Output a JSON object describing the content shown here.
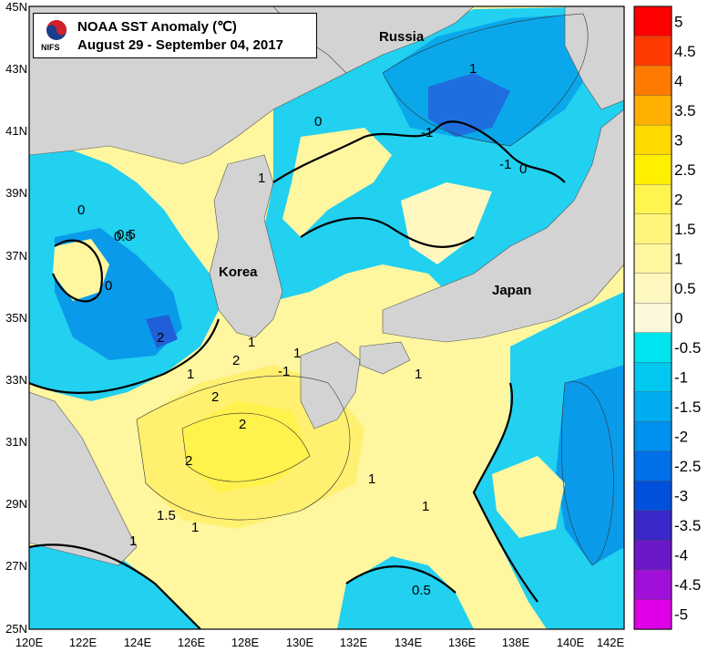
{
  "title": {
    "line1": "NOAA SST Anomaly (℃)",
    "line2": "August 29 - September 04, 2017",
    "logo_text": "NIFS"
  },
  "map": {
    "x_ticks": [
      "120E",
      "122E",
      "124E",
      "126E",
      "128E",
      "130E",
      "132E",
      "134E",
      "136E",
      "138E",
      "140E",
      "142E"
    ],
    "y_ticks": [
      "45N",
      "43N",
      "41N",
      "39N",
      "37N",
      "35N",
      "33N",
      "31N",
      "29N",
      "27N",
      "25N"
    ],
    "place_labels": [
      "Russia",
      "Korea",
      "Japan"
    ],
    "contour_labels": [
      "1",
      "-1",
      "0",
      "0",
      "-1",
      "1",
      "0",
      "0.5",
      "0",
      "2",
      "2",
      "1",
      "-1",
      "2",
      "1",
      "1",
      "2",
      "2",
      "1.5",
      "1",
      "1",
      "1",
      "1",
      "1",
      "0.5",
      "0.5"
    ]
  },
  "colorbar": {
    "labels": [
      "5",
      "4.5",
      "4",
      "3.5",
      "3",
      "2.5",
      "2",
      "1.5",
      "1",
      "0.5",
      "0",
      "-0.5",
      "-1",
      "-1.5",
      "-2",
      "-2.5",
      "-3",
      "-3.5",
      "-4",
      "-4.5",
      "-5"
    ],
    "colors": [
      "#ff0000",
      "#ff3a00",
      "#ff7a00",
      "#ffb000",
      "#ffd800",
      "#fff000",
      "#fff450",
      "#fff57c",
      "#fff6a0",
      "#fff7c0",
      "#fbf8dc",
      "#00e4f0",
      "#00c8f0",
      "#00acf0",
      "#0090f0",
      "#0070e8",
      "#0050dc",
      "#3a28c8",
      "#6a18c8",
      "#a010d8",
      "#e000e8"
    ]
  }
}
